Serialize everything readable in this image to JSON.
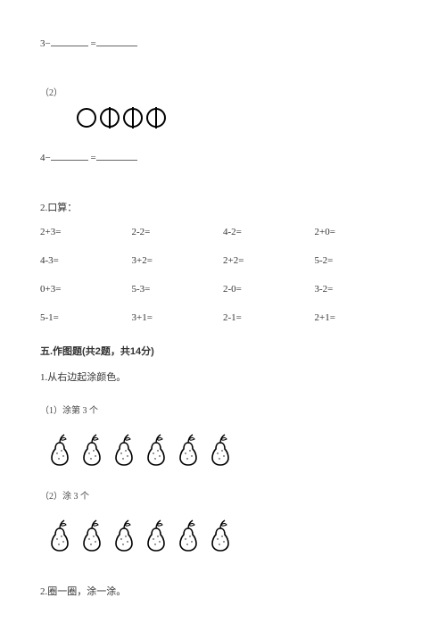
{
  "eq1": {
    "lhs": "3−",
    "eq": " ="
  },
  "sub2_label": "（2）",
  "circles2": {
    "crossed": [
      false,
      true,
      true,
      true
    ],
    "stroke": "#000000",
    "stroke_width": 2,
    "radius": 10,
    "size": 24
  },
  "eq2": {
    "lhs": "4−",
    "eq": " ="
  },
  "mental_calc": {
    "label": "2.口算：",
    "rows": [
      [
        "2+3=",
        "2-2=",
        "4-2=",
        "2+0="
      ],
      [
        "4-3=",
        "3+2=",
        "2+2=",
        "5-2="
      ],
      [
        "0+3=",
        "5-3=",
        "2-0=",
        "3-2="
      ],
      [
        "5-1=",
        "3+1=",
        "2-1=",
        "2+1="
      ]
    ]
  },
  "section5": {
    "header": "五.作图题(共2题，共14分)",
    "q1_label": "1.从右边起涂颜色。",
    "q1_sub1": "（1）涂第 3 个",
    "q1_sub2": "（2）涂 3 个",
    "pear_count": 6,
    "pear_style": {
      "stroke": "#000000",
      "fill": "#ffffff",
      "width": 24,
      "height": 36
    },
    "q2_label": "2.圈一圈，涂一涂。"
  }
}
